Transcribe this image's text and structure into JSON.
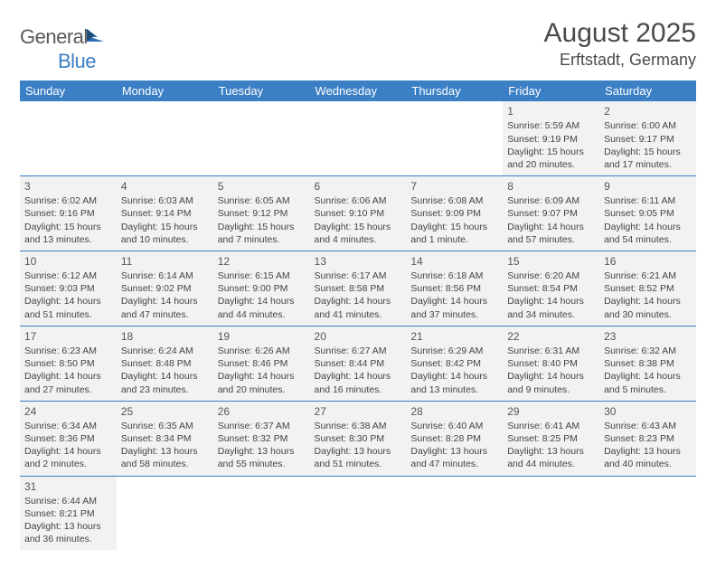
{
  "brand": {
    "general": "General",
    "blue": "Blue"
  },
  "title": "August 2025",
  "location": "Erftstadt, Germany",
  "colors": {
    "header_bg": "#3b7fc4",
    "header_text": "#ffffff",
    "row_shade": "#f2f2f2",
    "divider": "#3b7fc4",
    "text": "#444444"
  },
  "dayNames": [
    "Sunday",
    "Monday",
    "Tuesday",
    "Wednesday",
    "Thursday",
    "Friday",
    "Saturday"
  ],
  "weeks": [
    [
      null,
      null,
      null,
      null,
      null,
      {
        "d": "1",
        "sr": "Sunrise: 5:59 AM",
        "ss": "Sunset: 9:19 PM",
        "dl": "Daylight: 15 hours and 20 minutes."
      },
      {
        "d": "2",
        "sr": "Sunrise: 6:00 AM",
        "ss": "Sunset: 9:17 PM",
        "dl": "Daylight: 15 hours and 17 minutes."
      }
    ],
    [
      {
        "d": "3",
        "sr": "Sunrise: 6:02 AM",
        "ss": "Sunset: 9:16 PM",
        "dl": "Daylight: 15 hours and 13 minutes."
      },
      {
        "d": "4",
        "sr": "Sunrise: 6:03 AM",
        "ss": "Sunset: 9:14 PM",
        "dl": "Daylight: 15 hours and 10 minutes."
      },
      {
        "d": "5",
        "sr": "Sunrise: 6:05 AM",
        "ss": "Sunset: 9:12 PM",
        "dl": "Daylight: 15 hours and 7 minutes."
      },
      {
        "d": "6",
        "sr": "Sunrise: 6:06 AM",
        "ss": "Sunset: 9:10 PM",
        "dl": "Daylight: 15 hours and 4 minutes."
      },
      {
        "d": "7",
        "sr": "Sunrise: 6:08 AM",
        "ss": "Sunset: 9:09 PM",
        "dl": "Daylight: 15 hours and 1 minute."
      },
      {
        "d": "8",
        "sr": "Sunrise: 6:09 AM",
        "ss": "Sunset: 9:07 PM",
        "dl": "Daylight: 14 hours and 57 minutes."
      },
      {
        "d": "9",
        "sr": "Sunrise: 6:11 AM",
        "ss": "Sunset: 9:05 PM",
        "dl": "Daylight: 14 hours and 54 minutes."
      }
    ],
    [
      {
        "d": "10",
        "sr": "Sunrise: 6:12 AM",
        "ss": "Sunset: 9:03 PM",
        "dl": "Daylight: 14 hours and 51 minutes."
      },
      {
        "d": "11",
        "sr": "Sunrise: 6:14 AM",
        "ss": "Sunset: 9:02 PM",
        "dl": "Daylight: 14 hours and 47 minutes."
      },
      {
        "d": "12",
        "sr": "Sunrise: 6:15 AM",
        "ss": "Sunset: 9:00 PM",
        "dl": "Daylight: 14 hours and 44 minutes."
      },
      {
        "d": "13",
        "sr": "Sunrise: 6:17 AM",
        "ss": "Sunset: 8:58 PM",
        "dl": "Daylight: 14 hours and 41 minutes."
      },
      {
        "d": "14",
        "sr": "Sunrise: 6:18 AM",
        "ss": "Sunset: 8:56 PM",
        "dl": "Daylight: 14 hours and 37 minutes."
      },
      {
        "d": "15",
        "sr": "Sunrise: 6:20 AM",
        "ss": "Sunset: 8:54 PM",
        "dl": "Daylight: 14 hours and 34 minutes."
      },
      {
        "d": "16",
        "sr": "Sunrise: 6:21 AM",
        "ss": "Sunset: 8:52 PM",
        "dl": "Daylight: 14 hours and 30 minutes."
      }
    ],
    [
      {
        "d": "17",
        "sr": "Sunrise: 6:23 AM",
        "ss": "Sunset: 8:50 PM",
        "dl": "Daylight: 14 hours and 27 minutes."
      },
      {
        "d": "18",
        "sr": "Sunrise: 6:24 AM",
        "ss": "Sunset: 8:48 PM",
        "dl": "Daylight: 14 hours and 23 minutes."
      },
      {
        "d": "19",
        "sr": "Sunrise: 6:26 AM",
        "ss": "Sunset: 8:46 PM",
        "dl": "Daylight: 14 hours and 20 minutes."
      },
      {
        "d": "20",
        "sr": "Sunrise: 6:27 AM",
        "ss": "Sunset: 8:44 PM",
        "dl": "Daylight: 14 hours and 16 minutes."
      },
      {
        "d": "21",
        "sr": "Sunrise: 6:29 AM",
        "ss": "Sunset: 8:42 PM",
        "dl": "Daylight: 14 hours and 13 minutes."
      },
      {
        "d": "22",
        "sr": "Sunrise: 6:31 AM",
        "ss": "Sunset: 8:40 PM",
        "dl": "Daylight: 14 hours and 9 minutes."
      },
      {
        "d": "23",
        "sr": "Sunrise: 6:32 AM",
        "ss": "Sunset: 8:38 PM",
        "dl": "Daylight: 14 hours and 5 minutes."
      }
    ],
    [
      {
        "d": "24",
        "sr": "Sunrise: 6:34 AM",
        "ss": "Sunset: 8:36 PM",
        "dl": "Daylight: 14 hours and 2 minutes."
      },
      {
        "d": "25",
        "sr": "Sunrise: 6:35 AM",
        "ss": "Sunset: 8:34 PM",
        "dl": "Daylight: 13 hours and 58 minutes."
      },
      {
        "d": "26",
        "sr": "Sunrise: 6:37 AM",
        "ss": "Sunset: 8:32 PM",
        "dl": "Daylight: 13 hours and 55 minutes."
      },
      {
        "d": "27",
        "sr": "Sunrise: 6:38 AM",
        "ss": "Sunset: 8:30 PM",
        "dl": "Daylight: 13 hours and 51 minutes."
      },
      {
        "d": "28",
        "sr": "Sunrise: 6:40 AM",
        "ss": "Sunset: 8:28 PM",
        "dl": "Daylight: 13 hours and 47 minutes."
      },
      {
        "d": "29",
        "sr": "Sunrise: 6:41 AM",
        "ss": "Sunset: 8:25 PM",
        "dl": "Daylight: 13 hours and 44 minutes."
      },
      {
        "d": "30",
        "sr": "Sunrise: 6:43 AM",
        "ss": "Sunset: 8:23 PM",
        "dl": "Daylight: 13 hours and 40 minutes."
      }
    ],
    [
      {
        "d": "31",
        "sr": "Sunrise: 6:44 AM",
        "ss": "Sunset: 8:21 PM",
        "dl": "Daylight: 13 hours and 36 minutes."
      },
      null,
      null,
      null,
      null,
      null,
      null
    ]
  ]
}
